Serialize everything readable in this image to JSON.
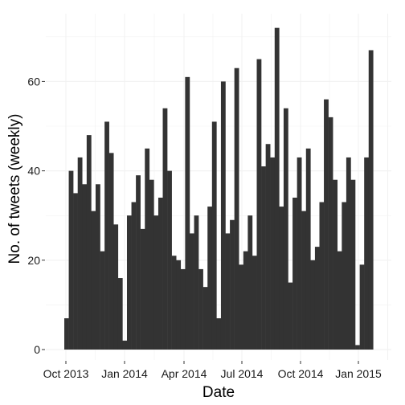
{
  "chart_data": {
    "type": "bar",
    "title": "",
    "xlabel": "Date",
    "ylabel": "No. of tweets (weekly)",
    "ylim": [
      0,
      72
    ],
    "y_ticks": [
      0,
      20,
      40,
      60
    ],
    "y_tick_labels": [
      "0",
      "20",
      "40",
      "60"
    ],
    "x_tick_labels": [
      "Oct 2013",
      "Jan 2014",
      "Apr 2014",
      "Jul 2014",
      "Oct 2014",
      "Jan 2015"
    ],
    "grid": "on",
    "bar_color": "#333333",
    "grid_color": "#f2f2f2",
    "values": [
      7,
      40,
      35,
      43,
      37,
      48,
      31,
      37,
      22,
      51,
      44,
      28,
      16,
      2,
      30,
      33,
      39,
      27,
      45,
      38,
      30,
      34,
      54,
      40,
      21,
      20,
      18,
      61,
      26,
      30,
      18,
      14,
      32,
      51,
      7,
      60,
      26,
      29,
      63,
      19,
      22,
      30,
      21,
      65,
      41,
      46,
      43,
      72,
      32,
      54,
      15,
      34,
      43,
      31,
      45,
      20,
      23,
      33,
      56,
      52,
      38,
      22,
      33,
      43,
      38,
      1,
      19,
      43,
      67
    ]
  }
}
